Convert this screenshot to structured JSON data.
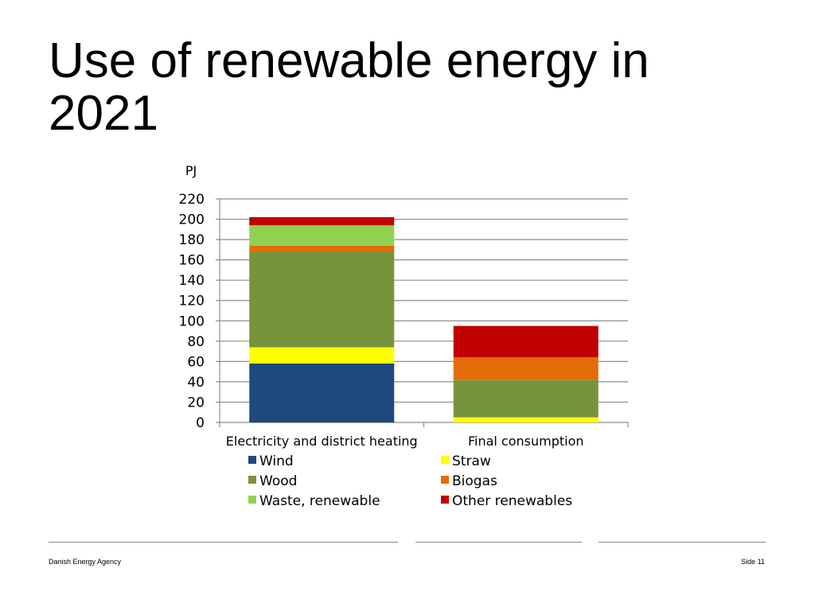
{
  "slide": {
    "title": "Use of renewable energy in 2021",
    "footer_left": "Danish Energy Agency",
    "footer_right": "Side 11"
  },
  "chart_data": {
    "type": "bar",
    "stacked": true,
    "title": "",
    "ylabel": "PJ",
    "xlabel": "",
    "ylim": [
      0,
      220
    ],
    "yticks": [
      0,
      20,
      40,
      60,
      80,
      100,
      120,
      140,
      160,
      180,
      200,
      220
    ],
    "grid": true,
    "legend_position": "bottom",
    "categories": [
      "Electricity and district heating",
      "Final consumption"
    ],
    "series": [
      {
        "name": "Wind",
        "color": "#1f497d",
        "values": [
          58,
          0
        ]
      },
      {
        "name": "Straw",
        "color": "#ffff00",
        "values": [
          16,
          5
        ]
      },
      {
        "name": "Wood",
        "color": "#77933c",
        "values": [
          94,
          37
        ]
      },
      {
        "name": "Biogas",
        "color": "#e36c09",
        "values": [
          6,
          22
        ]
      },
      {
        "name": "Waste, renewable",
        "color": "#92d050",
        "values": [
          20,
          0
        ]
      },
      {
        "name": "Other renewables",
        "color": "#c00000",
        "values": [
          8,
          31
        ]
      }
    ],
    "legend_order": [
      "Wind",
      "Straw",
      "Wood",
      "Biogas",
      "Waste, renewable",
      "Other renewables"
    ]
  }
}
